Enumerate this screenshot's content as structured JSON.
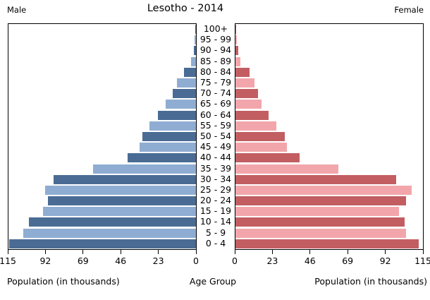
{
  "header": {
    "title": "Lesotho - 2014",
    "left_label": "Male",
    "right_label": "Female"
  },
  "footer": {
    "left_axis_title": "Population (in thousands)",
    "center_axis_title": "Age Group",
    "right_axis_title": "Population (in thousands)"
  },
  "colors": {
    "male_dark": "#4a6c94",
    "male_light": "#8fadd2",
    "female_dark": "#c25e62",
    "female_light": "#f2a6ab",
    "frame": "#000000",
    "background": "#ffffff"
  },
  "chart_data": {
    "type": "bar",
    "subtype": "population-pyramid",
    "title": "Lesotho - 2014",
    "unit": "thousands",
    "orientation": "horizontal",
    "age_groups": [
      "100+",
      "95 - 99",
      "90 - 94",
      "85 - 89",
      "80 - 84",
      "75 - 79",
      "70 - 74",
      "65 - 69",
      "60 - 64",
      "55 - 59",
      "50 - 54",
      "45 - 49",
      "40 - 44",
      "35 - 39",
      "30 - 34",
      "25 - 29",
      "20 - 24",
      "15 - 19",
      "10 - 14",
      "5 - 9",
      "0 - 4"
    ],
    "series": [
      {
        "name": "Male",
        "side": "left",
        "values": [
          0.3,
          0.7,
          1.3,
          3.0,
          7.3,
          11.6,
          14.2,
          18.5,
          23.3,
          28.4,
          32.7,
          34.5,
          41.8,
          63.3,
          87.4,
          92.6,
          90.9,
          93.9,
          102.5,
          106.0,
          114.5
        ]
      },
      {
        "name": "Female",
        "side": "right",
        "values": [
          0.4,
          0.9,
          1.7,
          3.0,
          8.6,
          11.6,
          13.8,
          15.9,
          20.2,
          25.0,
          30.2,
          31.4,
          39.2,
          63.3,
          98.6,
          108.1,
          104.7,
          100.4,
          103.8,
          104.7,
          112.4
        ]
      }
    ],
    "x_axis": {
      "max": 115,
      "ticks_male": [
        115,
        92,
        69,
        46,
        23,
        0
      ],
      "ticks_female": [
        0,
        23,
        46,
        69,
        92,
        115
      ]
    },
    "xlabel": "Population (in thousands)",
    "center_label": "Age Group",
    "grid": false,
    "legend_position": "top-corners"
  }
}
